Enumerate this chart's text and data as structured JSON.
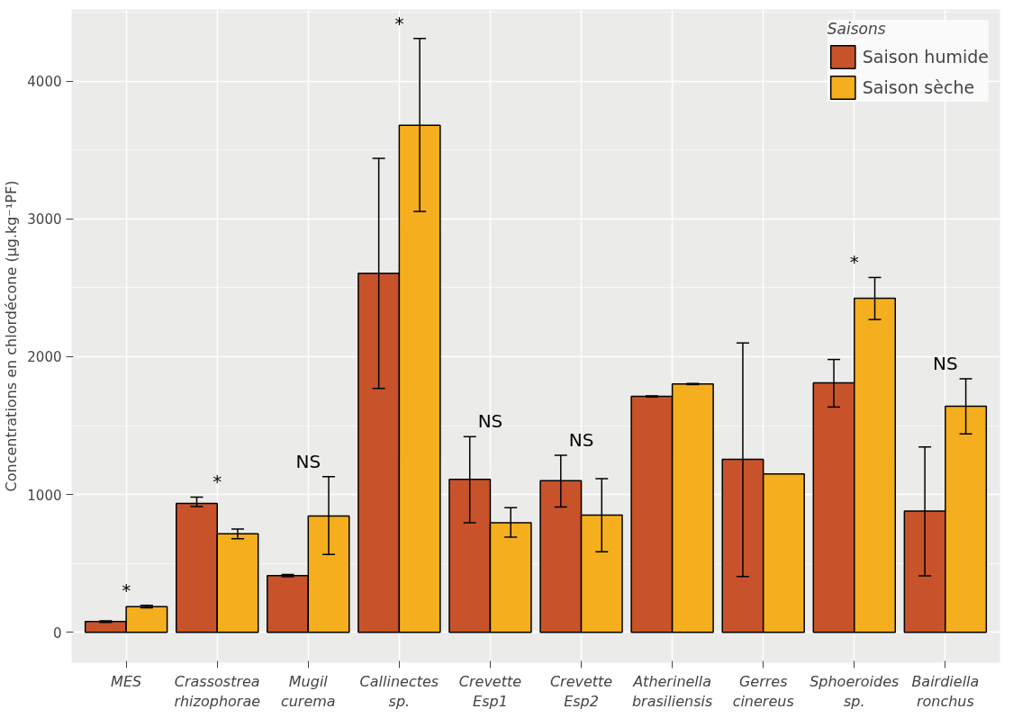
{
  "chart_data": {
    "type": "bar",
    "ylabel": "Concentrations en chlordécone (µg.kg⁻¹PF)",
    "legend_title": "Saisons",
    "categories": [
      "MES",
      "Crassostrea\nrhizophorae",
      "Mugil\ncurema",
      "Callinectes\nsp.",
      "Crevette\nEsp1",
      "Crevette\nEsp2",
      "Atherinella\nbrasiliensis",
      "Gerres\ncinereus",
      "Sphoeroides\nsp.",
      "Bairdiella\nronchus"
    ],
    "series": [
      {
        "name": "Saison humide",
        "color": "#c8532a",
        "values": [
          78,
          935,
          412,
          2605,
          1110,
          1100,
          1712,
          1255,
          1810,
          880
        ],
        "errors": [
          [
            72,
            84
          ],
          [
            912,
            982
          ],
          [
            404,
            420
          ],
          [
            1770,
            3440
          ],
          [
            795,
            1420
          ],
          [
            910,
            1285
          ],
          [
            1708,
            1716
          ],
          [
            405,
            2100
          ],
          [
            1635,
            1980
          ],
          [
            410,
            1345
          ]
        ]
      },
      {
        "name": "Saison sèche",
        "color": "#f5af1e",
        "values": [
          187,
          715,
          845,
          3680,
          795,
          850,
          1802,
          1150,
          2425,
          1640
        ],
        "errors": [
          [
            178,
            196
          ],
          [
            680,
            750
          ],
          [
            565,
            1130
          ],
          [
            3055,
            4310
          ],
          [
            690,
            905
          ],
          [
            585,
            1115
          ],
          [
            1798,
            1806
          ],
          null,
          [
            2270,
            2575
          ],
          [
            1440,
            1840
          ]
        ]
      }
    ],
    "ylim": [
      -220,
      4520
    ],
    "yticks": [
      0,
      1000,
      2000,
      3000,
      4000
    ],
    "grid": true,
    "legend": "top right",
    "annotations": [
      "*",
      "*",
      "NS",
      "*",
      "NS",
      "NS",
      "*",
      "NS"
    ]
  }
}
